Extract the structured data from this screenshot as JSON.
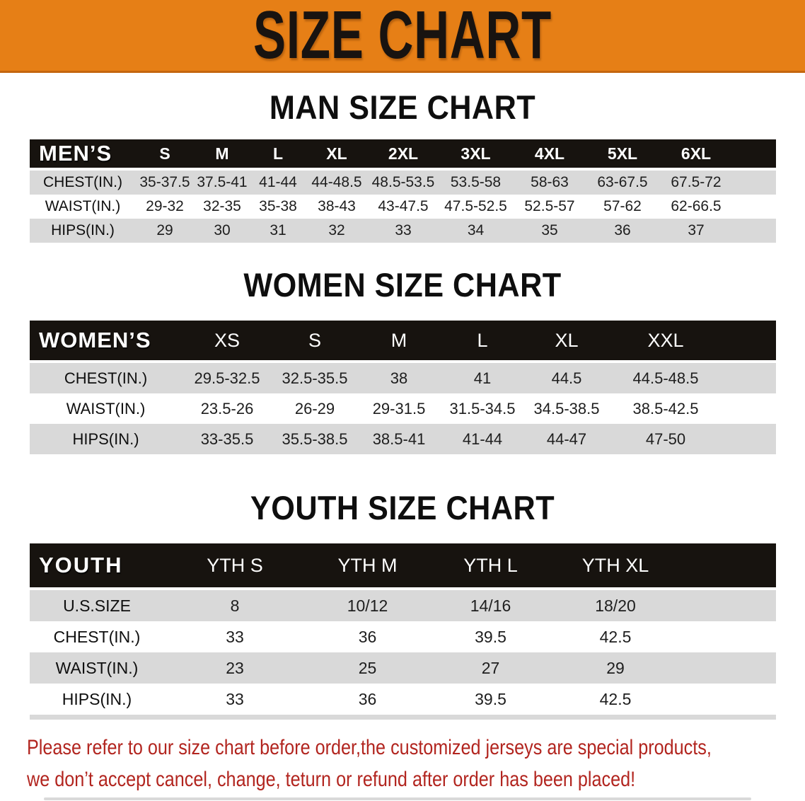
{
  "banner": {
    "title": "SIZE CHART"
  },
  "tables": {
    "mens": {
      "heading": "MAN SIZE CHART",
      "header": [
        "MEN’S",
        "S",
        "M",
        "L",
        "XL",
        "2XL",
        "3XL",
        "4XL",
        "5XL",
        "6XL"
      ],
      "rows": [
        [
          "CHEST(IN.)",
          "35-37.5",
          "37.5-41",
          "41-44",
          "44-48.5",
          "48.5-53.5",
          "53.5-58",
          "58-63",
          "63-67.5",
          "67.5-72"
        ],
        [
          "WAIST(IN.)",
          "29-32",
          "32-35",
          "35-38",
          "38-43",
          "43-47.5",
          "47.5-52.5",
          "52.5-57",
          "57-62",
          "62-66.5"
        ],
        [
          "HIPS(IN.)",
          "29",
          "30",
          "31",
          "32",
          "33",
          "34",
          "35",
          "36",
          "37"
        ]
      ]
    },
    "womens": {
      "heading": "WOMEN SIZE CHART",
      "header": [
        "WOMEN’S",
        "XS",
        "S",
        "M",
        "L",
        "XL",
        "XXL"
      ],
      "rows": [
        [
          "CHEST(IN.)",
          "29.5-32.5",
          "32.5-35.5",
          "38",
          "41",
          "44.5",
          "44.5-48.5"
        ],
        [
          "WAIST(IN.)",
          "23.5-26",
          "26-29",
          "29-31.5",
          "31.5-34.5",
          "34.5-38.5",
          "38.5-42.5"
        ],
        [
          "HIPS(IN.)",
          "33-35.5",
          "35.5-38.5",
          "38.5-41",
          "41-44",
          "44-47",
          "47-50"
        ]
      ]
    },
    "youth": {
      "heading": "YOUTH SIZE CHART",
      "header": [
        "YOUTH",
        "YTH S",
        "YTH M",
        "YTH L",
        "YTH XL"
      ],
      "rows": [
        [
          "U.S.SIZE",
          "8",
          "10/12",
          "14/16",
          "18/20"
        ],
        [
          "CHEST(IN.)",
          "33",
          "36",
          "39.5",
          "42.5"
        ],
        [
          "WAIST(IN.)",
          "23",
          "25",
          "27",
          "29"
        ],
        [
          "HIPS(IN.)",
          "33",
          "36",
          "39.5",
          "42.5"
        ]
      ]
    }
  },
  "footer": {
    "line1": "Please refer to our size chart before order,the customized jerseys are special products,",
    "line2": "we don’t accept cancel, change, teturn or refund after order has been placed!"
  },
  "colors": {
    "banner_orange": "#e67f16",
    "banner_edge": "#c4660e",
    "header_black": "#17130f",
    "row_gray": "#d9d9d9",
    "disclaimer_red": "#b2251f"
  }
}
